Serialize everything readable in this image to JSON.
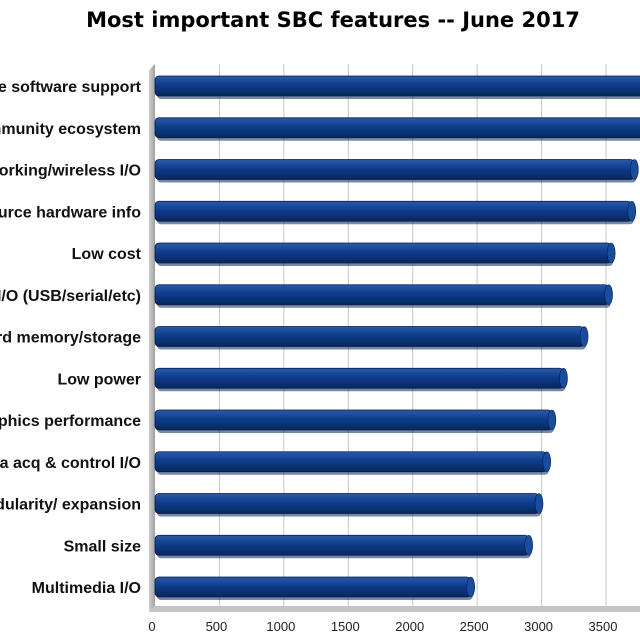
{
  "chart_data": {
    "type": "bar",
    "orientation": "horizontal",
    "title": "Most important SBC features -- June 2017",
    "categories": [
      "Open source software support",
      "Community ecosystem",
      "Networking/wireless I/O",
      "Open source hardware info",
      "Low cost",
      "Std. I/O (USB/serial/etc)",
      "Onboard memory/storage",
      "Low power",
      "Processor/graphics performance",
      "Data acq & control I/O",
      "Modularity/ expansion",
      "Small size",
      "Multimedia I/O"
    ],
    "values": [
      3850,
      3800,
      3720,
      3700,
      3540,
      3520,
      3330,
      3170,
      3080,
      3040,
      2980,
      2900,
      2450
    ],
    "xlim": [
      0,
      3700
    ],
    "xticks": [
      0,
      500,
      1000,
      1500,
      2000,
      2500,
      3000,
      3500
    ],
    "xtick_labels": [
      "0",
      "500",
      "1000",
      "1500",
      "2000",
      "2500",
      "3000",
      "3500"
    ],
    "grid": true,
    "bar_color": "#0d3d8c",
    "bar_highlight_color": "#2a5aa8",
    "bar_shadow_color": "#08275c",
    "background_color": "#ffffff",
    "grid_color": "#c8c8c8",
    "axis_wall_color": "#b8b8b8"
  }
}
